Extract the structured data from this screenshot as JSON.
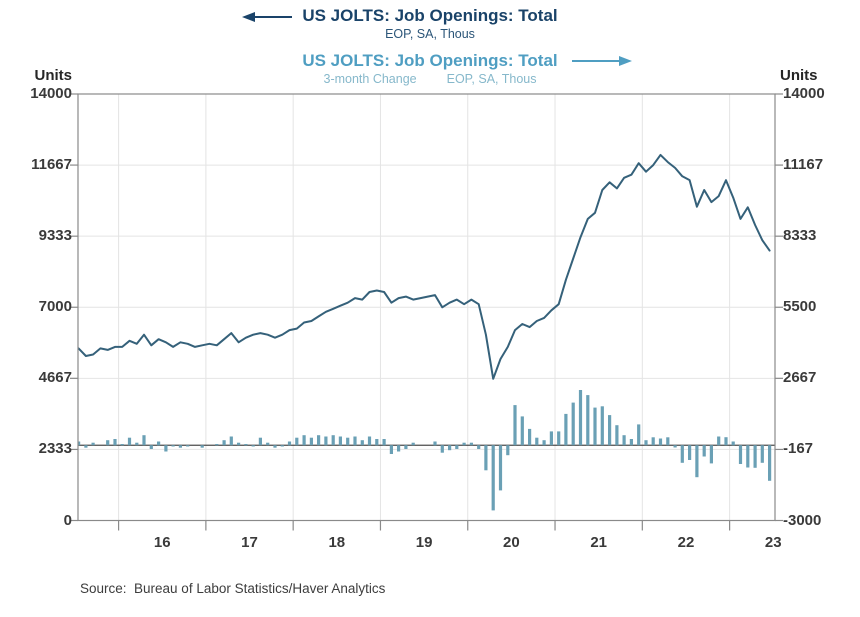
{
  "header": {
    "series1": {
      "title": "US JOLTS: Job Openings: Total",
      "subtitle": "EOP, SA, Thous",
      "arrow_direction": "left",
      "color": "#1a4369"
    },
    "series2": {
      "title": "US JOLTS: Job Openings: Total",
      "subtitle_part1": "3-month Change",
      "subtitle_part2": "EOP, SA, Thous",
      "arrow_direction": "right",
      "color": "#4f9ec2"
    }
  },
  "source": "Source:  Bureau of Labor Statistics/Haver Analytics",
  "chart_data": {
    "type": "combo",
    "title": "US JOLTS: Job Openings: Total",
    "grid": true,
    "x_axis": {
      "tick_labels": [
        "16",
        "17",
        "18",
        "19",
        "20",
        "21",
        "22",
        "23"
      ],
      "tick_years": [
        2016,
        2017,
        2018,
        2019,
        2020,
        2021,
        2022,
        2023
      ],
      "xlim": [
        2015.535,
        2023.52
      ]
    },
    "left_axis": {
      "label": "Units",
      "ticks": [
        14000,
        11667,
        9333,
        7000,
        4667,
        2333,
        0
      ],
      "ylim": [
        0,
        14000
      ]
    },
    "right_axis": {
      "label": "Units",
      "ticks": [
        14000,
        11167,
        8333,
        5500,
        2667,
        -167,
        -3000
      ],
      "ylim": [
        -3000,
        14000
      ]
    },
    "frequency": "monthly",
    "start": {
      "year": 2015,
      "month": 7
    },
    "end": {
      "year": 2023,
      "month": 6
    },
    "series": [
      {
        "name": "US JOLTS: Job Openings: Total",
        "subtitle": "EOP, SA, Thous",
        "type": "line",
        "axis": "left",
        "color": "#35617a",
        "values": [
          5650,
          5400,
          5450,
          5650,
          5600,
          5700,
          5700,
          5900,
          5800,
          6100,
          5750,
          5950,
          5850,
          5700,
          5850,
          5800,
          5700,
          5750,
          5800,
          5750,
          5950,
          6150,
          5850,
          6000,
          6100,
          6150,
          6100,
          6000,
          6100,
          6250,
          6300,
          6500,
          6550,
          6700,
          6850,
          6950,
          7050,
          7150,
          7300,
          7250,
          7500,
          7550,
          7500,
          7150,
          7300,
          7350,
          7250,
          7300,
          7350,
          7400,
          7000,
          7150,
          7250,
          7100,
          7250,
          7100,
          6100,
          4650,
          5300,
          5700,
          6250,
          6450,
          6350,
          6550,
          6650,
          6900,
          7100,
          7900,
          8600,
          9300,
          9900,
          10100,
          10850,
          11100,
          10900,
          11250,
          11350,
          11730,
          11450,
          11665,
          12000,
          11765,
          11575,
          11300,
          11175,
          10300,
          10850,
          10450,
          10650,
          11170,
          10600,
          9900,
          10280,
          9700,
          9200,
          8860
        ]
      },
      {
        "name": "US JOLTS: Job Openings: Total, 3-month Change",
        "subtitle": "3-month Change, EOP, SA, Thous",
        "type": "bar",
        "axis": "right",
        "color": "#6aa0b5",
        "values": [
          150,
          -100,
          100,
          0,
          200,
          250,
          50,
          300,
          100,
          400,
          -150,
          150,
          -250,
          -50,
          -100,
          -50,
          0,
          -100,
          0,
          50,
          200,
          350,
          100,
          50,
          -50,
          300,
          100,
          -100,
          -50,
          150,
          300,
          400,
          300,
          400,
          350,
          400,
          350,
          300,
          350,
          200,
          350,
          250,
          250,
          -350,
          -250,
          -150,
          100,
          0,
          0,
          150,
          -300,
          -200,
          -150,
          100,
          100,
          -150,
          -1000,
          -2600,
          -1800,
          -400,
          1600,
          1150,
          650,
          300,
          200,
          550,
          550,
          1250,
          1700,
          2200,
          2000,
          1500,
          1550,
          1200,
          800,
          400,
          250,
          830,
          200,
          315,
          270,
          315,
          -90,
          -700,
          -590,
          -1275,
          -450,
          -725,
          350,
          320,
          150,
          -750,
          -890,
          -900,
          -700,
          -1420
        ]
      }
    ],
    "style": {
      "grid_color": "#e4e4e4",
      "frame_color": "#8a8a8a",
      "zero_line_color": "#4d4d4d",
      "tick_label_color": "#3a3a3a"
    }
  }
}
